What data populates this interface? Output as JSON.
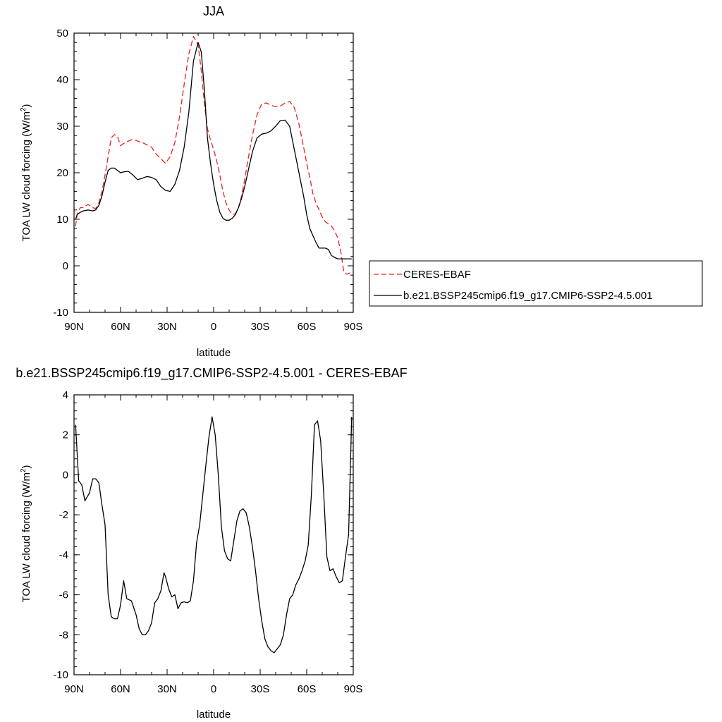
{
  "chart_data": [
    {
      "type": "line",
      "title": "JJA",
      "xlabel": "latitude",
      "ylabel": "TOA LW cloud forcing (W/m",
      "ylabel_sup": "2",
      "ylabel_close": ")",
      "xlim": [
        90,
        -90
      ],
      "ylim": [
        -10,
        50
      ],
      "xticks": [
        {
          "v": 90,
          "label": "90N"
        },
        {
          "v": 60,
          "label": "60N"
        },
        {
          "v": 30,
          "label": "30N"
        },
        {
          "v": 0,
          "label": "0"
        },
        {
          "v": -30,
          "label": "30S"
        },
        {
          "v": -60,
          "label": "60S"
        },
        {
          "v": -90,
          "label": "90S"
        }
      ],
      "yticks": [
        -10,
        0,
        10,
        20,
        30,
        40,
        50
      ],
      "legend_position": "right",
      "series": [
        {
          "name": "CERES-EBAF",
          "color": "#e8231e",
          "dash": "dashed",
          "x": [
            89,
            88,
            86,
            84,
            81,
            78,
            76,
            74,
            72,
            70,
            68,
            66,
            64,
            62,
            60,
            58,
            55,
            52,
            49,
            46,
            43,
            40,
            37,
            34,
            31,
            28,
            25,
            22,
            19,
            16,
            13,
            10,
            8,
            6,
            4,
            2,
            0,
            -2,
            -4,
            -6,
            -8,
            -10,
            -12,
            -14,
            -16,
            -18,
            -20,
            -22,
            -25,
            -28,
            -31,
            -34,
            -37,
            -40,
            -43,
            -46,
            -49,
            -52,
            -55,
            -58,
            -60,
            -62,
            -64,
            -66,
            -68,
            -70,
            -72,
            -74,
            -76,
            -78,
            -80,
            -82,
            -84,
            -86,
            -88,
            -89
          ],
          "y": [
            8.5,
            11,
            12.5,
            12.5,
            13.2,
            12.5,
            12.3,
            13.5,
            16,
            19.5,
            23.5,
            27.5,
            28.2,
            27.8,
            25.8,
            26.3,
            26.8,
            27.2,
            26.8,
            26.5,
            26,
            25.5,
            24,
            23,
            22,
            23.5,
            26.5,
            32,
            39,
            45.5,
            49.3,
            47.5,
            42,
            35,
            29.5,
            27,
            25,
            22.5,
            19.5,
            16,
            13.5,
            12,
            11,
            11.2,
            12.5,
            15,
            18.5,
            22.5,
            28,
            32.5,
            34.8,
            35,
            34.5,
            34.2,
            34.3,
            35,
            35.3,
            34,
            30.5,
            25.5,
            22,
            19,
            15.5,
            13.5,
            12,
            10.5,
            9.5,
            9,
            8.5,
            7.5,
            6,
            3,
            -1.5,
            -1.8,
            -1.5,
            -1.8
          ]
        },
        {
          "name": "b.e21.BSSP245cmip6.f19_g17.CMIP6-SSP2-4.5.001",
          "color": "#000000",
          "dash": "solid",
          "x": [
            89,
            88,
            86,
            84,
            81,
            78,
            76,
            74,
            72,
            70,
            68,
            66,
            64,
            62,
            60,
            58,
            55,
            52,
            49,
            46,
            43,
            40,
            37,
            34,
            31,
            28,
            25,
            22,
            19,
            16,
            13,
            10,
            8,
            6,
            4,
            2,
            0,
            -2,
            -4,
            -6,
            -8,
            -10,
            -12,
            -14,
            -16,
            -18,
            -20,
            -22,
            -25,
            -28,
            -31,
            -34,
            -37,
            -40,
            -43,
            -46,
            -49,
            -52,
            -55,
            -58,
            -60,
            -62,
            -64,
            -66,
            -68,
            -70,
            -72,
            -74,
            -76,
            -78,
            -80,
            -82,
            -84,
            -86,
            -88,
            -89
          ],
          "y": [
            10,
            11,
            11.5,
            11.8,
            12,
            11.8,
            12,
            13,
            15,
            18,
            20.5,
            21,
            21,
            20.5,
            20,
            20.2,
            20.3,
            19.5,
            18.5,
            18.8,
            19.2,
            19,
            18.5,
            17,
            16.2,
            16,
            17.5,
            20.5,
            25.5,
            33,
            44,
            48,
            46,
            38,
            27.5,
            22,
            17.5,
            14,
            11.5,
            10.2,
            9.8,
            9.8,
            10.2,
            11,
            12.5,
            14.5,
            17,
            20,
            24.5,
            27.5,
            28.3,
            28.5,
            29,
            30,
            31.2,
            31.3,
            30,
            25,
            20,
            15,
            11,
            8,
            6.5,
            5,
            3.8,
            3.8,
            3.8,
            3.5,
            2.2,
            1.8,
            1.5,
            1.5,
            1.5,
            1.5,
            1.5,
            1.5
          ]
        }
      ]
    },
    {
      "type": "line",
      "title": "b.e21.BSSP245cmip6.f19_g17.CMIP6-SSP2-4.5.001 - CERES-EBAF",
      "xlabel": "latitude",
      "ylabel": "TOA LW cloud forcing (W/m",
      "ylabel_sup": "2",
      "ylabel_close": ")",
      "xlim": [
        90,
        -90
      ],
      "ylim": [
        -10,
        4
      ],
      "xticks": [
        {
          "v": 90,
          "label": "90N"
        },
        {
          "v": 60,
          "label": "60N"
        },
        {
          "v": 30,
          "label": "30N"
        },
        {
          "v": 0,
          "label": "0"
        },
        {
          "v": -30,
          "label": "30S"
        },
        {
          "v": -60,
          "label": "60S"
        },
        {
          "v": -90,
          "label": "90S"
        }
      ],
      "yticks": [
        -10,
        -8,
        -6,
        -4,
        -2,
        0,
        2,
        4
      ],
      "series": [
        {
          "color": "#000000",
          "dash": "solid",
          "x": [
            89,
            87,
            85,
            83,
            80,
            78,
            76,
            74,
            72,
            70,
            68,
            66,
            64,
            62,
            60,
            58,
            56,
            53,
            50,
            48,
            46,
            44,
            42,
            40,
            38,
            36,
            34,
            32,
            31,
            29,
            27,
            25,
            23,
            21,
            19,
            17,
            15,
            13,
            11,
            9,
            7,
            5,
            3,
            1,
            -1,
            -3,
            -5,
            -7,
            -9,
            -11,
            -13,
            -15,
            -17,
            -19,
            -21,
            -23,
            -25,
            -27,
            -29,
            -31,
            -33,
            -35,
            -37,
            -39,
            -41,
            -43,
            -45,
            -47,
            -49,
            -51,
            -53,
            -55,
            -57,
            -59,
            -61,
            -63,
            -65,
            -67,
            -69,
            -71,
            -73,
            -75,
            -77,
            -79,
            -81,
            -83,
            -85,
            -87,
            -89
          ],
          "y": [
            2.5,
            -0.3,
            -0.5,
            -1.3,
            -0.9,
            -0.2,
            -0.2,
            -0.4,
            -1.5,
            -2.5,
            -6,
            -7.1,
            -7.2,
            -7.2,
            -6.5,
            -5.3,
            -6.2,
            -6.3,
            -7.0,
            -7.7,
            -8.0,
            -8.0,
            -7.8,
            -7.4,
            -6.4,
            -6.2,
            -5.8,
            -4.9,
            -5.1,
            -5.7,
            -6.1,
            -6.0,
            -6.7,
            -6.4,
            -6.35,
            -6.4,
            -6.3,
            -5.3,
            -3.4,
            -2.5,
            -1.0,
            0.5,
            1.9,
            2.9,
            2.0,
            0.0,
            -2.6,
            -3.8,
            -4.2,
            -4.3,
            -3.3,
            -2.3,
            -1.8,
            -1.7,
            -1.9,
            -2.6,
            -3.6,
            -4.8,
            -6.2,
            -7.3,
            -8.2,
            -8.6,
            -8.8,
            -8.9,
            -8.7,
            -8.5,
            -8.0,
            -7.0,
            -6.2,
            -6.0,
            -5.5,
            -5.2,
            -4.8,
            -4.3,
            -3.5,
            -1.0,
            2.5,
            2.7,
            1.7,
            -1.0,
            -4.1,
            -4.8,
            -4.7,
            -5.1,
            -5.4,
            -5.3,
            -4.1,
            -3.0,
            2.9
          ]
        }
      ]
    }
  ]
}
